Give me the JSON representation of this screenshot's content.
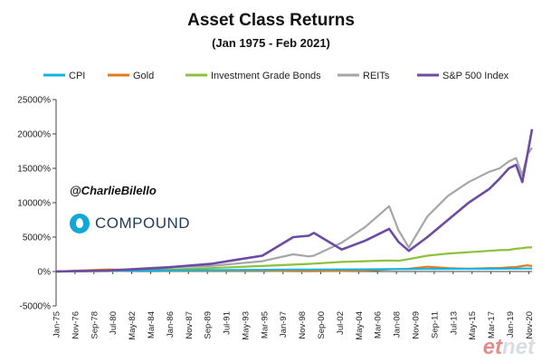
{
  "header": {
    "title": "Asset Class Returns",
    "subtitle": "(Jan 1975 - Feb 2021)"
  },
  "annotations": {
    "handle": "@CharlieBilello",
    "brand": "COMPOUND"
  },
  "watermark": {
    "prefix": "et",
    "suffix": "net"
  },
  "colors": {
    "CPI": "#12b5e0",
    "Gold": "#e07a1f",
    "Investment Grade Bonds": "#8dc03c",
    "REITs": "#a6a6a6",
    "S&P 500 Index": "#6d4ba3",
    "brand": "#11a8d8"
  },
  "chart_data": {
    "type": "line",
    "title": "Asset Class Returns",
    "subtitle": "(Jan 1975 - Feb 2021)",
    "xlabel": "",
    "ylabel": "",
    "ylim": [
      -5000,
      25000
    ],
    "y_ticks": [
      "-5000%",
      "0%",
      "5000%",
      "10000%",
      "15000%",
      "20000%",
      "25000%"
    ],
    "y_tick_values": [
      -5000,
      0,
      5000,
      10000,
      15000,
      20000,
      25000
    ],
    "grid": false,
    "legend_position": "top",
    "x_tick_labels": [
      "Jan-75",
      "Nov-76",
      "Sep-78",
      "Jul-80",
      "May-82",
      "Mar-84",
      "Jan-86",
      "Nov-87",
      "Sep-89",
      "Jul-91",
      "May-93",
      "Mar-95",
      "Jan-97",
      "Nov-98",
      "Sep-00",
      "Jul-02",
      "May-04",
      "Mar-06",
      "Jan-08",
      "Nov-09",
      "Sep-11",
      "Jul-13",
      "May-15",
      "Mar-17",
      "Jan-19",
      "Nov-20"
    ],
    "x": [
      1975,
      1980,
      1985,
      1990,
      1995,
      1998,
      1999.5,
      2000,
      2002.7,
      2005,
      2007.3,
      2008.2,
      2009.2,
      2011,
      2013,
      2015,
      2017,
      2018,
      2018.9,
      2019.6,
      2020.2,
      2020.7,
      2021.15
    ],
    "series": [
      {
        "name": "CPI",
        "values": [
          0,
          100,
          150,
          200,
          250,
          270,
          280,
          290,
          300,
          320,
          340,
          350,
          350,
          370,
          380,
          390,
          400,
          410,
          420,
          425,
          430,
          435,
          440
        ]
      },
      {
        "name": "Gold",
        "values": [
          0,
          300,
          100,
          100,
          100,
          50,
          50,
          50,
          80,
          150,
          300,
          350,
          400,
          700,
          500,
          400,
          500,
          500,
          600,
          650,
          800,
          900,
          800
        ]
      },
      {
        "name": "Investment Grade Bonds",
        "values": [
          0,
          50,
          250,
          500,
          800,
          1000,
          1100,
          1150,
          1400,
          1500,
          1600,
          1550,
          1800,
          2300,
          2600,
          2800,
          3000,
          3100,
          3150,
          3300,
          3400,
          3500,
          3500
        ]
      },
      {
        "name": "REITs",
        "values": [
          0,
          150,
          600,
          800,
          1500,
          2500,
          2200,
          2300,
          4200,
          6500,
          9500,
          6000,
          3500,
          8000,
          11000,
          13000,
          14500,
          15000,
          16000,
          16500,
          14000,
          17000,
          18000
        ]
      },
      {
        "name": "S&P 500 Index",
        "values": [
          0,
          150,
          500,
          1100,
          2300,
          5000,
          5200,
          5600,
          3200,
          4500,
          6200,
          4300,
          3000,
          5000,
          7500,
          10000,
          12000,
          13500,
          15000,
          15500,
          13000,
          17000,
          20700
        ]
      }
    ]
  }
}
